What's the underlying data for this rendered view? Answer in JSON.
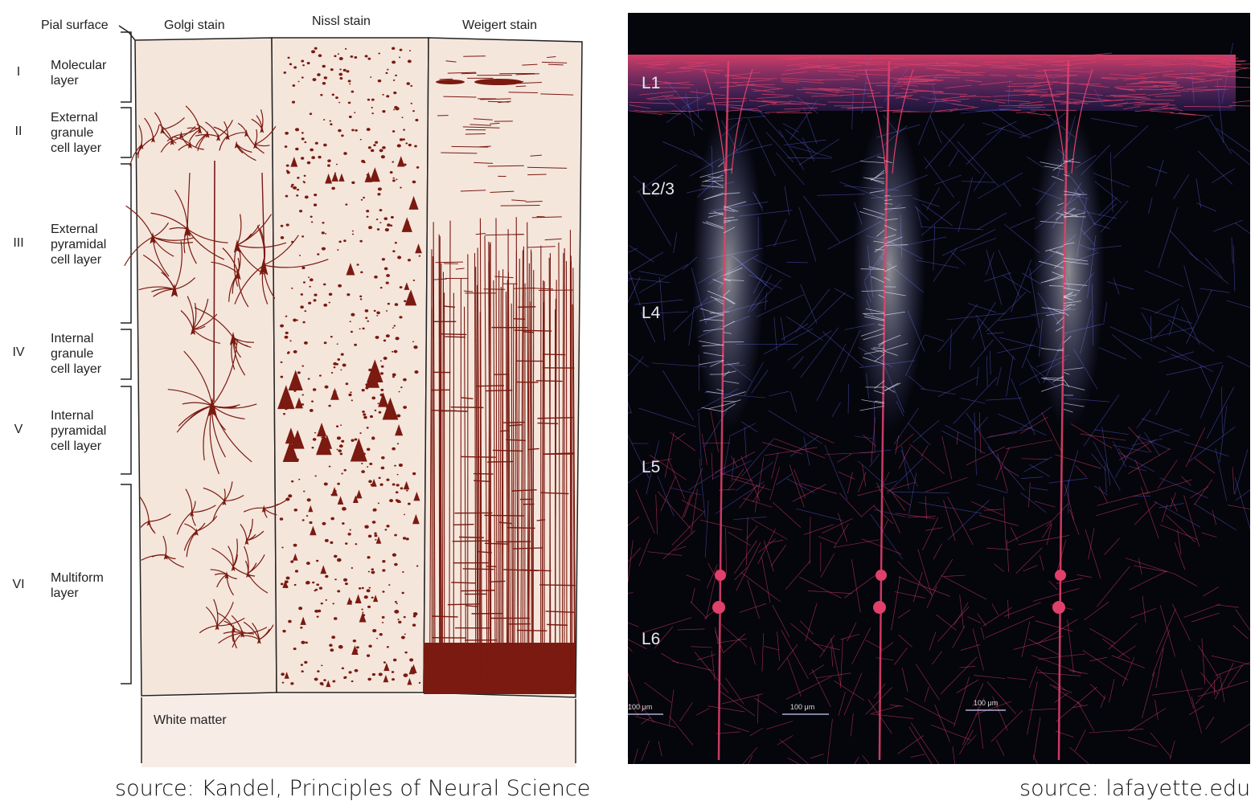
{
  "left_panel": {
    "headers": {
      "pial": "Pial surface",
      "golgi": "Golgi stain",
      "nissl": "Nissl stain",
      "weigert": "Weigert stain"
    },
    "layers": [
      {
        "roman": "I",
        "name_lines": [
          "Molecular",
          "layer"
        ]
      },
      {
        "roman": "II",
        "name_lines": [
          "External",
          "granule",
          "cell layer"
        ]
      },
      {
        "roman": "III",
        "name_lines": [
          "External",
          "pyramidal",
          "cell layer"
        ]
      },
      {
        "roman": "IV",
        "name_lines": [
          "Internal",
          "granule",
          "cell layer"
        ]
      },
      {
        "roman": "V",
        "name_lines": [
          "Internal",
          "pyramidal",
          "cell layer"
        ]
      },
      {
        "roman": "VI",
        "name_lines": [
          "Multiform",
          "layer"
        ]
      }
    ],
    "white_matter": "White matter",
    "colors": {
      "background": "#f5e6dc",
      "stain": "#7a1a10",
      "ink": "#222222"
    }
  },
  "right_panel": {
    "layer_labels": [
      "L1",
      "L2/3",
      "L4",
      "L5",
      "L6"
    ],
    "scale_bars": [
      "100 μm",
      "100 μm",
      "100 μm"
    ],
    "colors": {
      "background": "#05050c",
      "red": "#e0406a",
      "blue": "#5a60d8",
      "white": "#e8e8ff"
    }
  },
  "sources": {
    "left": "source: Kandel, Principles of Neural Science",
    "right": "source: lafayette.edu"
  }
}
